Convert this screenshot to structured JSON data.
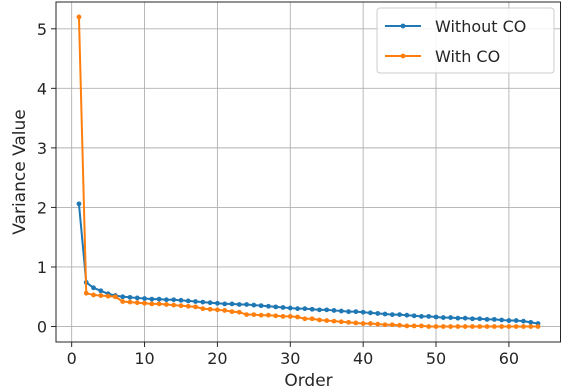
{
  "chart_data": {
    "type": "line",
    "title": "",
    "xlabel": "Order",
    "ylabel": "Variance Value",
    "xlim": [
      -2.15,
      67.15
    ],
    "ylim": [
      -0.26,
      5.45
    ],
    "xticks": [
      0,
      10,
      20,
      30,
      40,
      50,
      60
    ],
    "yticks": [
      0,
      1,
      2,
      3,
      4,
      5
    ],
    "grid": true,
    "legend_position": "top-right",
    "x": [
      1,
      2,
      3,
      4,
      5,
      6,
      7,
      8,
      9,
      10,
      11,
      12,
      13,
      14,
      15,
      16,
      17,
      18,
      19,
      20,
      21,
      22,
      23,
      24,
      25,
      26,
      27,
      28,
      29,
      30,
      31,
      32,
      33,
      34,
      35,
      36,
      37,
      38,
      39,
      40,
      41,
      42,
      43,
      44,
      45,
      46,
      47,
      48,
      49,
      50,
      51,
      52,
      53,
      54,
      55,
      56,
      57,
      58,
      59,
      60,
      61,
      62,
      63,
      64
    ],
    "series": [
      {
        "name": "Without CO",
        "color": "#1f77b4",
        "values": [
          2.06,
          0.74,
          0.65,
          0.6,
          0.55,
          0.52,
          0.5,
          0.49,
          0.48,
          0.47,
          0.46,
          0.46,
          0.45,
          0.45,
          0.44,
          0.43,
          0.42,
          0.41,
          0.4,
          0.39,
          0.38,
          0.38,
          0.37,
          0.37,
          0.36,
          0.35,
          0.34,
          0.33,
          0.32,
          0.31,
          0.3,
          0.3,
          0.29,
          0.28,
          0.28,
          0.27,
          0.26,
          0.25,
          0.25,
          0.24,
          0.23,
          0.22,
          0.21,
          0.2,
          0.2,
          0.19,
          0.18,
          0.17,
          0.17,
          0.16,
          0.15,
          0.15,
          0.14,
          0.14,
          0.13,
          0.13,
          0.12,
          0.12,
          0.11,
          0.1,
          0.1,
          0.09,
          0.07,
          0.05
        ]
      },
      {
        "name": "With CO",
        "color": "#ff7f0e",
        "values": [
          5.2,
          0.56,
          0.53,
          0.52,
          0.51,
          0.5,
          0.42,
          0.41,
          0.4,
          0.39,
          0.38,
          0.38,
          0.37,
          0.36,
          0.35,
          0.34,
          0.33,
          0.3,
          0.29,
          0.28,
          0.27,
          0.25,
          0.24,
          0.2,
          0.2,
          0.19,
          0.19,
          0.18,
          0.17,
          0.17,
          0.16,
          0.13,
          0.13,
          0.11,
          0.1,
          0.09,
          0.08,
          0.07,
          0.06,
          0.05,
          0.05,
          0.04,
          0.03,
          0.03,
          0.02,
          0.01,
          0.01,
          0.01,
          0.0,
          0.0,
          0.0,
          0.0,
          0.0,
          0.0,
          0.0,
          0.0,
          0.0,
          0.0,
          0.0,
          0.0,
          0.0,
          0.0,
          0.0,
          0.0
        ]
      }
    ]
  }
}
